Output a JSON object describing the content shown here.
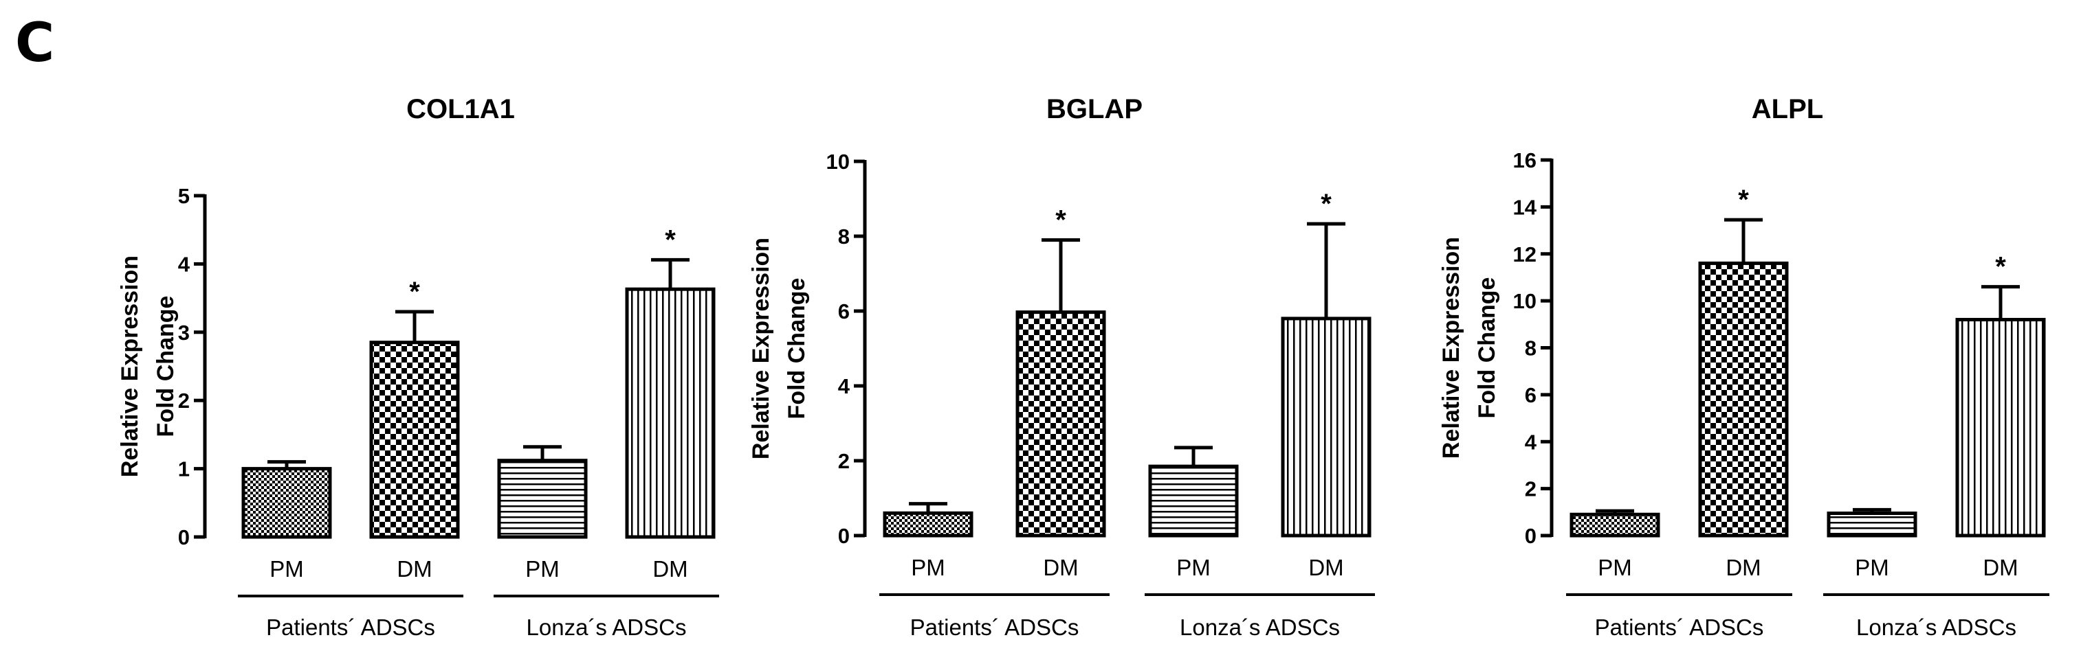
{
  "panel_label": "C",
  "chart_data": [
    {
      "type": "bar",
      "title": "COL1A1",
      "ylabel_lines": [
        "Relative Expression",
        "Fold Change"
      ],
      "ylim": [
        0,
        5
      ],
      "yticks": [
        0,
        1,
        2,
        3,
        4,
        5
      ],
      "categories": [
        "PM",
        "DM",
        "PM",
        "DM"
      ],
      "values": [
        1.0,
        2.85,
        1.12,
        3.63
      ],
      "errors": [
        0.1,
        0.45,
        0.2,
        0.43
      ],
      "significance": [
        "",
        "*",
        "",
        "*"
      ],
      "patterns": [
        "dots-fine",
        "checker",
        "hlines",
        "vlines"
      ],
      "groups": [
        {
          "label": "Patients´ ADSCs",
          "span": [
            0,
            1
          ]
        },
        {
          "label": "Lonza´s ADSCs",
          "span": [
            2,
            3
          ]
        }
      ]
    },
    {
      "type": "bar",
      "title": "BGLAP",
      "ylabel_lines": [
        "Relative Expression",
        "Fold Change"
      ],
      "ylim": [
        0,
        10
      ],
      "yticks": [
        0,
        2,
        4,
        6,
        8,
        10
      ],
      "categories": [
        "PM",
        "DM",
        "PM",
        "DM"
      ],
      "values": [
        0.6,
        5.97,
        1.85,
        5.8
      ],
      "errors": [
        0.25,
        1.93,
        0.5,
        2.53
      ],
      "significance": [
        "",
        "*",
        "",
        "*"
      ],
      "patterns": [
        "dots-fine",
        "checker",
        "hlines",
        "vlines"
      ],
      "groups": [
        {
          "label": "Patients´ ADSCs",
          "span": [
            0,
            1
          ]
        },
        {
          "label": "Lonza´s ADSCs",
          "span": [
            2,
            3
          ]
        }
      ]
    },
    {
      "type": "bar",
      "title": "ALPL",
      "ylabel_lines": [
        "Relative Expression",
        "Fold Change"
      ],
      "ylim": [
        0,
        16
      ],
      "yticks": [
        0,
        2,
        4,
        6,
        8,
        10,
        12,
        14,
        16
      ],
      "categories": [
        "PM",
        "DM",
        "PM",
        "DM"
      ],
      "values": [
        0.9,
        11.6,
        0.95,
        9.2
      ],
      "errors": [
        0.15,
        1.85,
        0.15,
        1.4
      ],
      "significance": [
        "",
        "*",
        "",
        "*"
      ],
      "patterns": [
        "dots-fine",
        "checker",
        "hlines",
        "vlines"
      ],
      "groups": [
        {
          "label": "Patients´ ADSCs",
          "span": [
            0,
            1
          ]
        },
        {
          "label": "Lonza´s ADSCs",
          "span": [
            2,
            3
          ]
        }
      ]
    }
  ]
}
